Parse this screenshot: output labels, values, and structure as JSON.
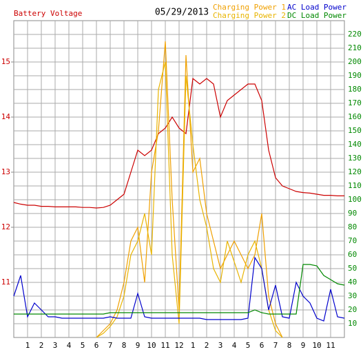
{
  "chart_data": {
    "type": "line",
    "title": "05/29/2013",
    "ylabel": "Battery Voltage",
    "x": [
      0,
      0.5,
      1,
      1.5,
      2,
      2.5,
      3,
      3.5,
      4,
      4.5,
      5,
      5.5,
      6,
      6.5,
      7,
      7.5,
      8,
      8.5,
      9,
      9.5,
      10,
      10.5,
      11,
      11.5,
      12,
      12.5,
      13,
      13.5,
      14,
      14.5,
      15,
      15.5,
      16,
      16.5,
      17,
      17.5,
      18,
      18.5,
      19,
      19.5,
      20,
      20.5,
      21,
      21.5,
      22,
      22.5,
      23,
      23.5,
      24
    ],
    "xlim": [
      0,
      24
    ],
    "xticks": [
      1,
      2,
      3,
      4,
      5,
      6,
      7,
      8,
      9,
      10,
      11,
      12,
      {
        "value": 13,
        "label": "1"
      },
      {
        "value": 14,
        "label": "2"
      },
      {
        "value": 15,
        "label": "3"
      },
      {
        "value": 16,
        "label": "4"
      },
      {
        "value": 17,
        "label": "5"
      },
      {
        "value": 18,
        "label": "6"
      },
      {
        "value": 19,
        "label": "7"
      },
      {
        "value": 20,
        "label": "8"
      },
      {
        "value": 21,
        "label": "9"
      },
      {
        "value": 22,
        "label": "10"
      },
      {
        "value": 23,
        "label": "11"
      }
    ],
    "ylim": [
      10,
      15.75
    ],
    "yticks": [
      11,
      12,
      13,
      14,
      15
    ],
    "y2lim": [
      0,
      230
    ],
    "y2ticks": [
      10,
      20,
      30,
      40,
      50,
      60,
      70,
      80,
      90,
      100,
      110,
      120,
      130,
      140,
      150,
      160,
      170,
      180,
      190,
      200,
      210,
      220
    ],
    "grid": true,
    "series": [
      {
        "name": "Battery Voltage",
        "color": "#cc0000",
        "axis": "y",
        "values": [
          12.45,
          12.42,
          12.4,
          12.4,
          12.38,
          12.38,
          12.37,
          12.37,
          12.37,
          12.37,
          12.36,
          12.36,
          12.35,
          12.36,
          12.4,
          12.5,
          12.6,
          13.0,
          13.4,
          13.3,
          13.4,
          13.7,
          13.8,
          14.0,
          13.8,
          13.7,
          14.7,
          14.6,
          14.7,
          14.6,
          14.0,
          14.3,
          14.4,
          14.5,
          14.6,
          14.6,
          14.3,
          13.4,
          12.9,
          12.75,
          12.7,
          12.65,
          12.63,
          12.62,
          12.6,
          12.58,
          12.58,
          12.57,
          12.57
        ]
      },
      {
        "name": "Charging Power 1",
        "color": "#f0a000",
        "axis": "y2",
        "values": [
          null,
          null,
          null,
          null,
          null,
          null,
          null,
          null,
          null,
          null,
          null,
          null,
          0,
          5,
          10,
          20,
          40,
          70,
          80,
          40,
          120,
          150,
          215,
          100,
          20,
          205,
          120,
          130,
          90,
          70,
          50,
          60,
          70,
          60,
          50,
          60,
          90,
          30,
          10,
          0,
          null,
          null,
          null,
          null,
          null,
          null,
          null,
          null,
          null
        ]
      },
      {
        "name": "Charging Power 2",
        "color": "#e8b400",
        "axis": "y2",
        "values": [
          null,
          null,
          null,
          null,
          null,
          null,
          null,
          null,
          null,
          null,
          null,
          null,
          0,
          3,
          8,
          15,
          30,
          60,
          70,
          90,
          60,
          180,
          200,
          60,
          10,
          190,
          140,
          100,
          80,
          50,
          40,
          70,
          55,
          40,
          60,
          70,
          50,
          20,
          5,
          0,
          null,
          null,
          null,
          null,
          null,
          null,
          null,
          null,
          null
        ]
      },
      {
        "name": "AC Load Power",
        "color": "#0000cc",
        "axis": "y2",
        "values": [
          30,
          45,
          15,
          25,
          20,
          15,
          15,
          14,
          14,
          14,
          14,
          14,
          14,
          14,
          15,
          14,
          14,
          14,
          32,
          15,
          14,
          14,
          14,
          14,
          14,
          14,
          14,
          14,
          13,
          13,
          13,
          13,
          13,
          13,
          14,
          58,
          50,
          20,
          38,
          15,
          14,
          40,
          30,
          25,
          14,
          12,
          35,
          15,
          14
        ]
      },
      {
        "name": "DC Load Power",
        "color": "#008800",
        "axis": "y2",
        "values": [
          17,
          17,
          17,
          17,
          17,
          17,
          17,
          17,
          17,
          17,
          17,
          17,
          17,
          17,
          18,
          18,
          18,
          18,
          18,
          18,
          18,
          18,
          18,
          18,
          18,
          18,
          18,
          18,
          18,
          18,
          18,
          18,
          18,
          18,
          18,
          20,
          18,
          17,
          17,
          17,
          17,
          17,
          53,
          53,
          52,
          45,
          42,
          39,
          38
        ]
      }
    ]
  }
}
